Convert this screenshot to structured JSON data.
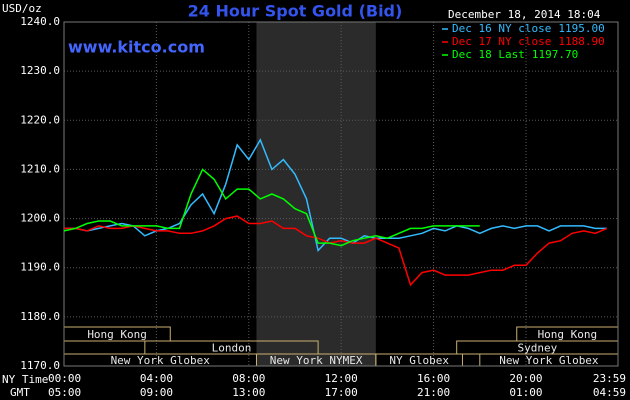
{
  "chart_data": {
    "type": "line",
    "title": "24 Hour Spot Gold (Bid)",
    "source": "www.kitco.com",
    "timestamp": "December 18, 2014 18:04",
    "y_label": "USD/oz",
    "x_label": "NY Time",
    "x2_label": "GMT",
    "xlim": [
      0,
      23.983
    ],
    "ylim": [
      1170,
      1240
    ],
    "grid": true,
    "shade": [
      8.333,
      13.5
    ],
    "xticks": [
      {
        "value": 0,
        "label": "00:00"
      },
      {
        "value": 4,
        "label": "04:00"
      },
      {
        "value": 8,
        "label": "08:00"
      },
      {
        "value": 12,
        "label": "12:00"
      },
      {
        "value": 16,
        "label": "16:00"
      },
      {
        "value": 20,
        "label": "20:00"
      },
      {
        "value": 23.983,
        "label": "23:59"
      }
    ],
    "x2ticks": [
      {
        "value": 0,
        "label": "05:00"
      },
      {
        "value": 4,
        "label": "09:00"
      },
      {
        "value": 8,
        "label": "13:00"
      },
      {
        "value": 12,
        "label": "17:00"
      },
      {
        "value": 16,
        "label": "21:00"
      },
      {
        "value": 20,
        "label": "01:00"
      },
      {
        "value": 23.983,
        "label": "04:59"
      }
    ],
    "yticks": [
      {
        "value": 1170,
        "label": "1170.0"
      },
      {
        "value": 1180,
        "label": "1180.0"
      },
      {
        "value": 1190,
        "label": "1190.0"
      },
      {
        "value": 1200,
        "label": "1200.0"
      },
      {
        "value": 1210,
        "label": "1210.0"
      },
      {
        "value": 1220,
        "label": "1220.0"
      },
      {
        "value": 1230,
        "label": "1230.0"
      },
      {
        "value": 1240,
        "label": "1240.0"
      }
    ],
    "market_rows": [
      [
        {
          "label": "Hong Kong",
          "start": 0,
          "end": 4.6
        },
        {
          "label": "Hong Kong",
          "start": 19.6,
          "end": 23.983
        }
      ],
      [
        {
          "label": "London",
          "start": 3.5,
          "end": 11
        },
        {
          "label": "Sydney",
          "start": 17,
          "end": 23.983
        }
      ],
      [
        {
          "label": "New York Globex",
          "start": 0,
          "end": 8.333
        },
        {
          "label": "New York NYMEX",
          "start": 8.333,
          "end": 13.5
        },
        {
          "label": "NY Globex",
          "start": 13.5,
          "end": 17.25
        },
        {
          "label": "New York Globex",
          "start": 18,
          "end": 23.983
        }
      ]
    ],
    "x": [
      0,
      0.5,
      1,
      1.5,
      2,
      2.5,
      3,
      3.5,
      4,
      4.5,
      5,
      5.5,
      6,
      6.5,
      7,
      7.5,
      8,
      8.5,
      9,
      9.5,
      10,
      10.5,
      11,
      11.5,
      12,
      12.5,
      13,
      13.5,
      14,
      14.5,
      15,
      15.5,
      16,
      16.5,
      17,
      17.5,
      18,
      18.5,
      19,
      19.5,
      20,
      20.5,
      21,
      21.5,
      22,
      22.5,
      23,
      23.5
    ],
    "series": [
      {
        "name": "Dec 16 NY close",
        "close": {
          "value": 1195,
          "label": "1195.00"
        },
        "color": "#33bbff",
        "values": [
          1198,
          1198,
          1197.5,
          1198,
          1198.5,
          1199,
          1198.5,
          1196.5,
          1197.5,
          1198,
          1199,
          1202.8,
          1205,
          1201,
          1207,
          1215,
          1212,
          1216,
          1210,
          1212,
          1209,
          1204,
          1193.5,
          1196,
          1196,
          1195,
          1196.5,
          1196,
          1196,
          1196,
          1196.5,
          1197,
          1198,
          1197.5,
          1198.5,
          1198,
          1197,
          1198,
          1198.5,
          1198,
          1198.5,
          1198.5,
          1197.5,
          1198.5,
          1198.5,
          1198.5,
          1198,
          1198
        ]
      },
      {
        "name": "Dec 17 NY close",
        "close": {
          "value": 1188.9,
          "label": "1188.90"
        },
        "color": "#ff0000",
        "values": [
          1198,
          1198,
          1197.5,
          1198.5,
          1198,
          1198,
          1198.5,
          1198,
          1197.5,
          1197.5,
          1197,
          1197,
          1197.5,
          1198.5,
          1200,
          1200.5,
          1199,
          1199,
          1199.5,
          1198,
          1198,
          1196.5,
          1196,
          1195,
          1195.5,
          1195,
          1195,
          1196,
          1195,
          1194,
          1186.5,
          1189,
          1189.5,
          1188.5,
          1188.5,
          1188.5,
          1189,
          1189.5,
          1189.5,
          1190.5,
          1190.5,
          1193,
          1195,
          1195.5,
          1197,
          1197.5,
          1197,
          1198
        ]
      },
      {
        "name": "Dec 18 Last",
        "close": {
          "value": 1197.7,
          "label": "1197.70"
        },
        "color": "#00ff00",
        "values": [
          1197.5,
          1198,
          1199,
          1199.5,
          1199.5,
          1198.5,
          1198.5,
          1198.5,
          1198.5,
          1198,
          1198,
          1205,
          1210,
          1208,
          1204,
          1206,
          1206,
          1204,
          1205,
          1204,
          1202,
          1201,
          1195,
          1195,
          1194.5,
          1195.5,
          1196,
          1196.5,
          1196,
          1197,
          1198,
          1198,
          1198.5,
          1198.5,
          1198.5,
          1198.5,
          1198.5,
          null,
          null,
          null,
          null,
          null,
          null,
          null,
          null,
          null,
          null,
          null
        ]
      }
    ]
  }
}
